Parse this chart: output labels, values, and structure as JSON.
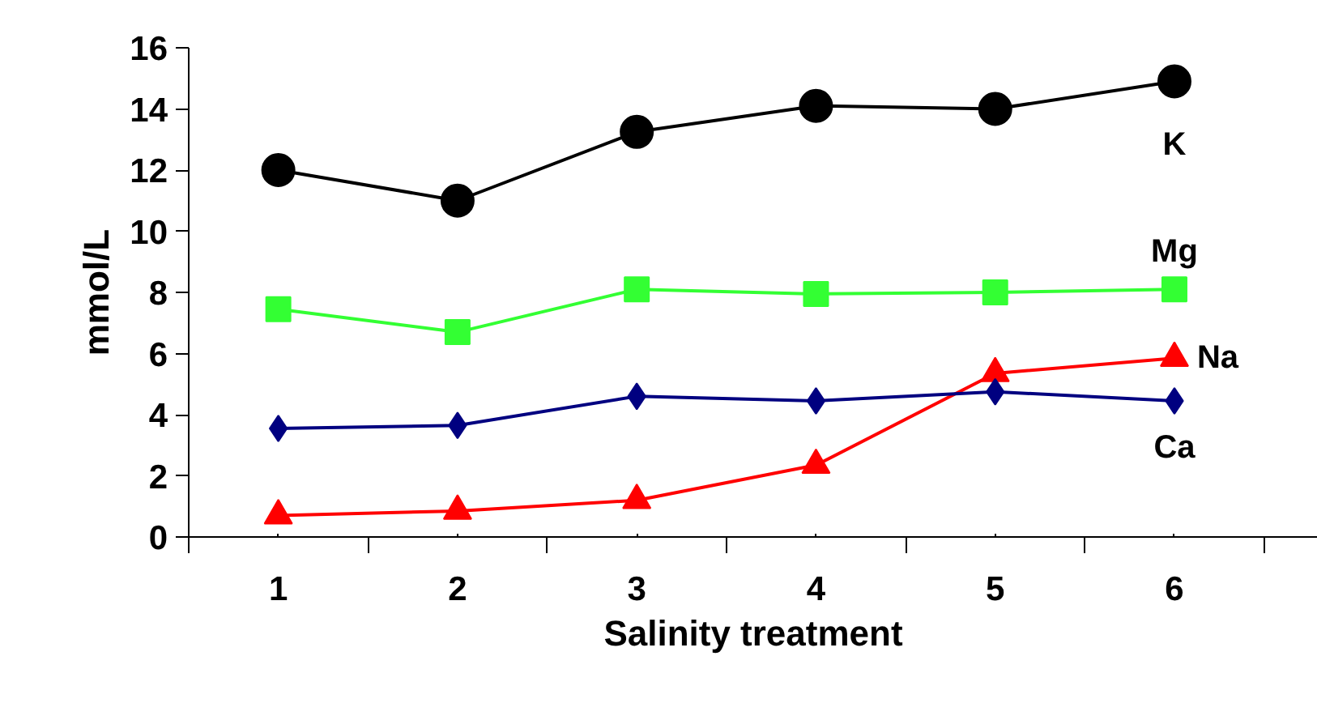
{
  "chart_data": {
    "type": "line",
    "xlabel": "Salinity treatment",
    "ylabel": "mmol/L",
    "categories": [
      "1",
      "2",
      "3",
      "4",
      "5",
      "6"
    ],
    "series": [
      {
        "name": "K",
        "color": "#000000",
        "marker": "circle",
        "values": [
          12.0,
          11.0,
          13.25,
          14.1,
          14.0,
          14.9
        ]
      },
      {
        "name": "Mg",
        "color": "#33ff33",
        "marker": "square",
        "values": [
          7.45,
          6.7,
          8.1,
          7.95,
          8.0,
          8.1
        ]
      },
      {
        "name": "Na",
        "color": "#ff0000",
        "marker": "triangle",
        "values": [
          0.7,
          0.85,
          1.2,
          2.35,
          5.35,
          5.85
        ]
      },
      {
        "name": "Ca",
        "color": "#000080",
        "marker": "diamond",
        "values": [
          3.55,
          3.65,
          4.6,
          4.45,
          4.75,
          4.45
        ]
      }
    ],
    "ylim": [
      0,
      16
    ],
    "yticks": [
      0,
      2,
      4,
      6,
      8,
      10,
      12,
      14,
      16
    ],
    "grid": false
  }
}
